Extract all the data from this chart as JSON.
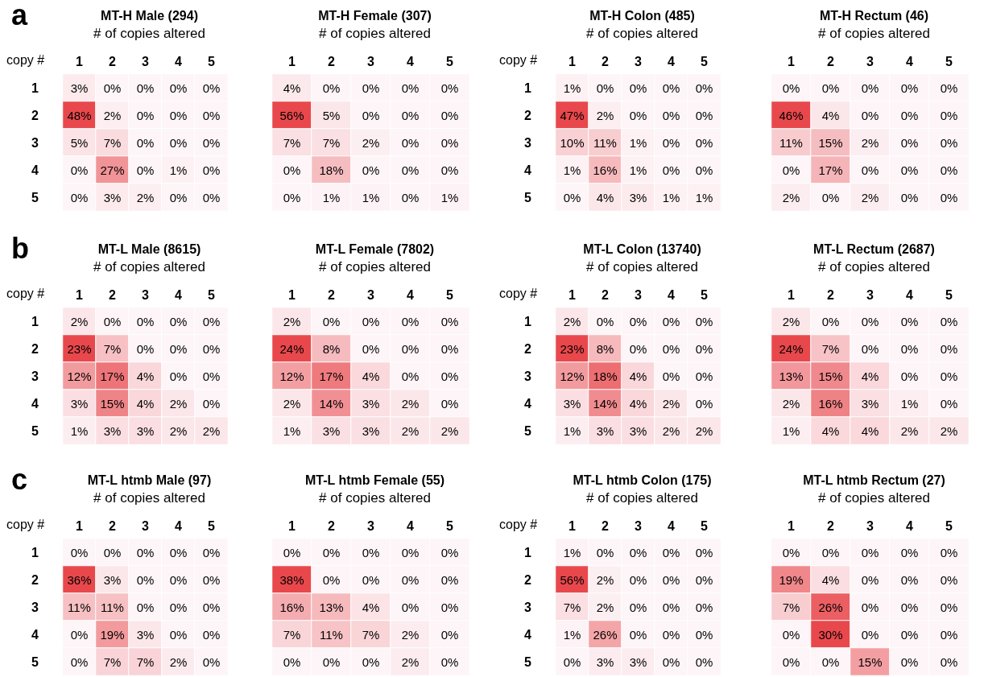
{
  "chart_data": [
    {
      "type": "heatmap",
      "title": "MT-H Male (294)",
      "xlabel": "# of copies altered",
      "ylabel": "copy #",
      "annotations": [
        "a"
      ],
      "categories": [
        "1",
        "2",
        "3",
        "4",
        "5"
      ],
      "y_categories": [
        "1",
        "2",
        "3",
        "4",
        "5"
      ],
      "cells": [
        [
          3,
          0,
          0,
          0,
          0
        ],
        [
          48,
          2,
          0,
          0,
          0
        ],
        [
          5,
          7,
          0,
          0,
          0
        ],
        [
          0,
          27,
          0,
          1,
          0
        ],
        [
          0,
          3,
          2,
          0,
          0
        ]
      ],
      "cell_labels": [
        [
          "3%",
          "0%",
          "0%",
          "0%",
          "0%"
        ],
        [
          "48%",
          "2%",
          "0%",
          "0%",
          "0%"
        ],
        [
          "5%",
          "7%",
          "0%",
          "0%",
          "0%"
        ],
        [
          "0%",
          "27%",
          "0%",
          "1%",
          "0%"
        ],
        [
          "0%",
          "3%",
          "2%",
          "0%",
          "0%"
        ]
      ]
    },
    {
      "type": "heatmap",
      "title": "MT-H Female (307)",
      "xlabel": "# of copies altered",
      "tick_labels": "x",
      "categories": [
        "1",
        "2",
        "3",
        "4",
        "5"
      ],
      "y_categories": [
        "1",
        "2",
        "3",
        "4",
        "5"
      ],
      "cells": [
        [
          4,
          0,
          0,
          0,
          0
        ],
        [
          56,
          5,
          0,
          0,
          0
        ],
        [
          7,
          7,
          2,
          0,
          0
        ],
        [
          0,
          18,
          0,
          0,
          0
        ],
        [
          0,
          1,
          1,
          0,
          1
        ]
      ],
      "cell_labels": [
        [
          "4%",
          "0%",
          "0%",
          "0%",
          "0%"
        ],
        [
          "56%",
          "5%",
          "0%",
          "0%",
          "0%"
        ],
        [
          "7%",
          "7%",
          "2%",
          "0%",
          "0%"
        ],
        [
          "0%",
          "18%",
          "0%",
          "0%",
          "0%"
        ],
        [
          "0%",
          "1%",
          "1%",
          "0%",
          "1%"
        ]
      ]
    },
    {
      "type": "heatmap",
      "title": "MT-H Colon (485)",
      "xlabel": "# of copies altered",
      "ylabel": "copy #",
      "categories": [
        "1",
        "2",
        "3",
        "4",
        "5"
      ],
      "y_categories": [
        "1",
        "2",
        "3",
        "4",
        "5"
      ],
      "cells": [
        [
          1,
          0,
          0,
          0,
          0
        ],
        [
          47,
          2,
          0,
          0,
          0
        ],
        [
          10,
          11,
          1,
          0,
          0
        ],
        [
          1,
          16,
          1,
          0,
          0
        ],
        [
          0,
          4,
          3,
          1,
          1
        ]
      ],
      "cell_labels": [
        [
          "1%",
          "0%",
          "0%",
          "0%",
          "0%"
        ],
        [
          "47%",
          "2%",
          "0%",
          "0%",
          "0%"
        ],
        [
          "10%",
          "11%",
          "1%",
          "0%",
          "0%"
        ],
        [
          "1%",
          "16%",
          "1%",
          "0%",
          "0%"
        ],
        [
          "0%",
          "4%",
          "3%",
          "1%",
          "1%"
        ]
      ]
    },
    {
      "type": "heatmap",
      "title": "MT-H Rectum (46)",
      "xlabel": "# of copies altered",
      "tick_labels": "x",
      "categories": [
        "1",
        "2",
        "3",
        "4",
        "5"
      ],
      "y_categories": [
        "1",
        "2",
        "3",
        "4",
        "5"
      ],
      "cells": [
        [
          0,
          0,
          0,
          0,
          0
        ],
        [
          46,
          4,
          0,
          0,
          0
        ],
        [
          11,
          15,
          2,
          0,
          0
        ],
        [
          0,
          17,
          0,
          0,
          0
        ],
        [
          2,
          0,
          2,
          0,
          0
        ]
      ],
      "cell_labels": [
        [
          "0%",
          "0%",
          "0%",
          "0%",
          "0%"
        ],
        [
          "46%",
          "4%",
          "0%",
          "0%",
          "0%"
        ],
        [
          "11%",
          "15%",
          "2%",
          "0%",
          "0%"
        ],
        [
          "0%",
          "17%",
          "0%",
          "0%",
          "0%"
        ],
        [
          "2%",
          "0%",
          "2%",
          "0%",
          "0%"
        ]
      ]
    },
    {
      "type": "heatmap",
      "title": "MT-L Male (8615)",
      "xlabel": "# of copies altered",
      "ylabel": "copy #",
      "annotations": [
        "b"
      ],
      "categories": [
        "1",
        "2",
        "3",
        "4",
        "5"
      ],
      "y_categories": [
        "1",
        "2",
        "3",
        "4",
        "5"
      ],
      "cells": [
        [
          2,
          0,
          0,
          0,
          0
        ],
        [
          23,
          7,
          0,
          0,
          0
        ],
        [
          12,
          17,
          4,
          0,
          0
        ],
        [
          3,
          15,
          4,
          2,
          0
        ],
        [
          1,
          3,
          3,
          2,
          2
        ]
      ],
      "cell_labels": [
        [
          "2%",
          "0%",
          "0%",
          "0%",
          "0%"
        ],
        [
          "23%",
          "7%",
          "0%",
          "0%",
          "0%"
        ],
        [
          "12%",
          "17%",
          "4%",
          "0%",
          "0%"
        ],
        [
          "3%",
          "15%",
          "4%",
          "2%",
          "0%"
        ],
        [
          "1%",
          "3%",
          "3%",
          "2%",
          "2%"
        ]
      ]
    },
    {
      "type": "heatmap",
      "title": "MT-L Female (7802)",
      "xlabel": "# of copies altered",
      "tick_labels": "x",
      "categories": [
        "1",
        "2",
        "3",
        "4",
        "5"
      ],
      "y_categories": [
        "1",
        "2",
        "3",
        "4",
        "5"
      ],
      "cells": [
        [
          2,
          0,
          0,
          0,
          0
        ],
        [
          24,
          8,
          0,
          0,
          0
        ],
        [
          12,
          17,
          4,
          0,
          0
        ],
        [
          2,
          14,
          3,
          2,
          0
        ],
        [
          1,
          3,
          3,
          2,
          2
        ]
      ],
      "cell_labels": [
        [
          "2%",
          "0%",
          "0%",
          "0%",
          "0%"
        ],
        [
          "24%",
          "8%",
          "0%",
          "0%",
          "0%"
        ],
        [
          "12%",
          "17%",
          "4%",
          "0%",
          "0%"
        ],
        [
          "2%",
          "14%",
          "3%",
          "2%",
          "0%"
        ],
        [
          "1%",
          "3%",
          "3%",
          "2%",
          "2%"
        ]
      ]
    },
    {
      "type": "heatmap",
      "title": "MT-L Colon (13740)",
      "xlabel": "# of copies altered",
      "ylabel": "copy #",
      "categories": [
        "1",
        "2",
        "3",
        "4",
        "5"
      ],
      "y_categories": [
        "1",
        "2",
        "3",
        "4",
        "5"
      ],
      "cells": [
        [
          2,
          0,
          0,
          0,
          0
        ],
        [
          23,
          8,
          0,
          0,
          0
        ],
        [
          12,
          18,
          4,
          0,
          0
        ],
        [
          3,
          14,
          4,
          2,
          0
        ],
        [
          1,
          3,
          3,
          2,
          2
        ]
      ],
      "cell_labels": [
        [
          "2%",
          "0%",
          "0%",
          "0%",
          "0%"
        ],
        [
          "23%",
          "8%",
          "0%",
          "0%",
          "0%"
        ],
        [
          "12%",
          "18%",
          "4%",
          "0%",
          "0%"
        ],
        [
          "3%",
          "14%",
          "4%",
          "2%",
          "0%"
        ],
        [
          "1%",
          "3%",
          "3%",
          "2%",
          "2%"
        ]
      ]
    },
    {
      "type": "heatmap",
      "title": "MT-L Rectum (2687)",
      "xlabel": "# of copies altered",
      "tick_labels": "x",
      "categories": [
        "1",
        "2",
        "3",
        "4",
        "5"
      ],
      "y_categories": [
        "1",
        "2",
        "3",
        "4",
        "5"
      ],
      "cells": [
        [
          2,
          0,
          0,
          0,
          0
        ],
        [
          24,
          7,
          0,
          0,
          0
        ],
        [
          13,
          15,
          4,
          0,
          0
        ],
        [
          2,
          16,
          3,
          1,
          0
        ],
        [
          1,
          4,
          4,
          2,
          2
        ]
      ],
      "cell_labels": [
        [
          "2%",
          "0%",
          "0%",
          "0%",
          "0%"
        ],
        [
          "24%",
          "7%",
          "0%",
          "0%",
          "0%"
        ],
        [
          "13%",
          "15%",
          "4%",
          "0%",
          "0%"
        ],
        [
          "2%",
          "16%",
          "3%",
          "1%",
          "0%"
        ],
        [
          "1%",
          "4%",
          "4%",
          "2%",
          "2%"
        ]
      ]
    },
    {
      "type": "heatmap",
      "title": "MT-L htmb Male (97)",
      "xlabel": "# of copies altered",
      "ylabel": "copy #",
      "annotations": [
        "c"
      ],
      "categories": [
        "1",
        "2",
        "3",
        "4",
        "5"
      ],
      "y_categories": [
        "1",
        "2",
        "3",
        "4",
        "5"
      ],
      "cells": [
        [
          0,
          0,
          0,
          0,
          0
        ],
        [
          36,
          3,
          0,
          0,
          0
        ],
        [
          11,
          11,
          0,
          0,
          0
        ],
        [
          0,
          19,
          3,
          0,
          0
        ],
        [
          0,
          7,
          7,
          2,
          0
        ]
      ],
      "cell_labels": [
        [
          "0%",
          "0%",
          "0%",
          "0%",
          "0%"
        ],
        [
          "36%",
          "3%",
          "0%",
          "0%",
          "0%"
        ],
        [
          "11%",
          "11%",
          "0%",
          "0%",
          "0%"
        ],
        [
          "0%",
          "19%",
          "3%",
          "0%",
          "0%"
        ],
        [
          "0%",
          "7%",
          "7%",
          "2%",
          "0%"
        ]
      ]
    },
    {
      "type": "heatmap",
      "title": "MT-L htmb Female (55)",
      "xlabel": "# of copies altered",
      "tick_labels": "x",
      "categories": [
        "1",
        "2",
        "3",
        "4",
        "5"
      ],
      "y_categories": [
        "1",
        "2",
        "3",
        "4",
        "5"
      ],
      "cells": [
        [
          0,
          0,
          0,
          0,
          0
        ],
        [
          38,
          0,
          0,
          0,
          0
        ],
        [
          16,
          13,
          4,
          0,
          0
        ],
        [
          7,
          11,
          7,
          2,
          0
        ],
        [
          0,
          0,
          0,
          2,
          0
        ]
      ],
      "cell_labels": [
        [
          "0%",
          "0%",
          "0%",
          "0%",
          "0%"
        ],
        [
          "38%",
          "0%",
          "0%",
          "0%",
          "0%"
        ],
        [
          "16%",
          "13%",
          "4%",
          "0%",
          "0%"
        ],
        [
          "7%",
          "11%",
          "7%",
          "2%",
          "0%"
        ],
        [
          "0%",
          "0%",
          "0%",
          "2%",
          "0%"
        ]
      ]
    },
    {
      "type": "heatmap",
      "title": "MT-L htmb Colon (175)",
      "xlabel": "# of copies altered",
      "ylabel": "copy #",
      "categories": [
        "1",
        "2",
        "3",
        "4",
        "5"
      ],
      "y_categories": [
        "1",
        "2",
        "3",
        "4",
        "5"
      ],
      "cells": [
        [
          1,
          0,
          0,
          0,
          0
        ],
        [
          56,
          2,
          0,
          0,
          0
        ],
        [
          7,
          2,
          0,
          0,
          0
        ],
        [
          1,
          26,
          0,
          0,
          0
        ],
        [
          0,
          3,
          3,
          0,
          0
        ]
      ],
      "cell_labels": [
        [
          "1%",
          "0%",
          "0%",
          "0%",
          "0%"
        ],
        [
          "56%",
          "2%",
          "0%",
          "0%",
          "0%"
        ],
        [
          "7%",
          "2%",
          "0%",
          "0%",
          "0%"
        ],
        [
          "1%",
          "26%",
          "0%",
          "0%",
          "0%"
        ],
        [
          "0%",
          "3%",
          "3%",
          "0%",
          "0%"
        ]
      ]
    },
    {
      "type": "heatmap",
      "title": "MT-L htmb Rectum (27)",
      "xlabel": "# of copies altered",
      "tick_labels": "x",
      "categories": [
        "1",
        "2",
        "3",
        "4",
        "5"
      ],
      "y_categories": [
        "1",
        "2",
        "3",
        "4",
        "5"
      ],
      "cells": [
        [
          0,
          0,
          0,
          0,
          0
        ],
        [
          19,
          4,
          0,
          0,
          0
        ],
        [
          7,
          26,
          0,
          0,
          0
        ],
        [
          0,
          30,
          0,
          0,
          0
        ],
        [
          0,
          0,
          15,
          0,
          0
        ]
      ],
      "cell_labels": [
        [
          "0%",
          "0%",
          "0%",
          "0%",
          "0%"
        ],
        [
          "19%",
          "4%",
          "0%",
          "0%",
          "0%"
        ],
        [
          "7%",
          "26%",
          "0%",
          "0%",
          "0%"
        ],
        [
          "0%",
          "30%",
          "0%",
          "0%",
          "0%"
        ],
        [
          "0%",
          "0%",
          "15%",
          "0%",
          "0%"
        ]
      ]
    }
  ]
}
